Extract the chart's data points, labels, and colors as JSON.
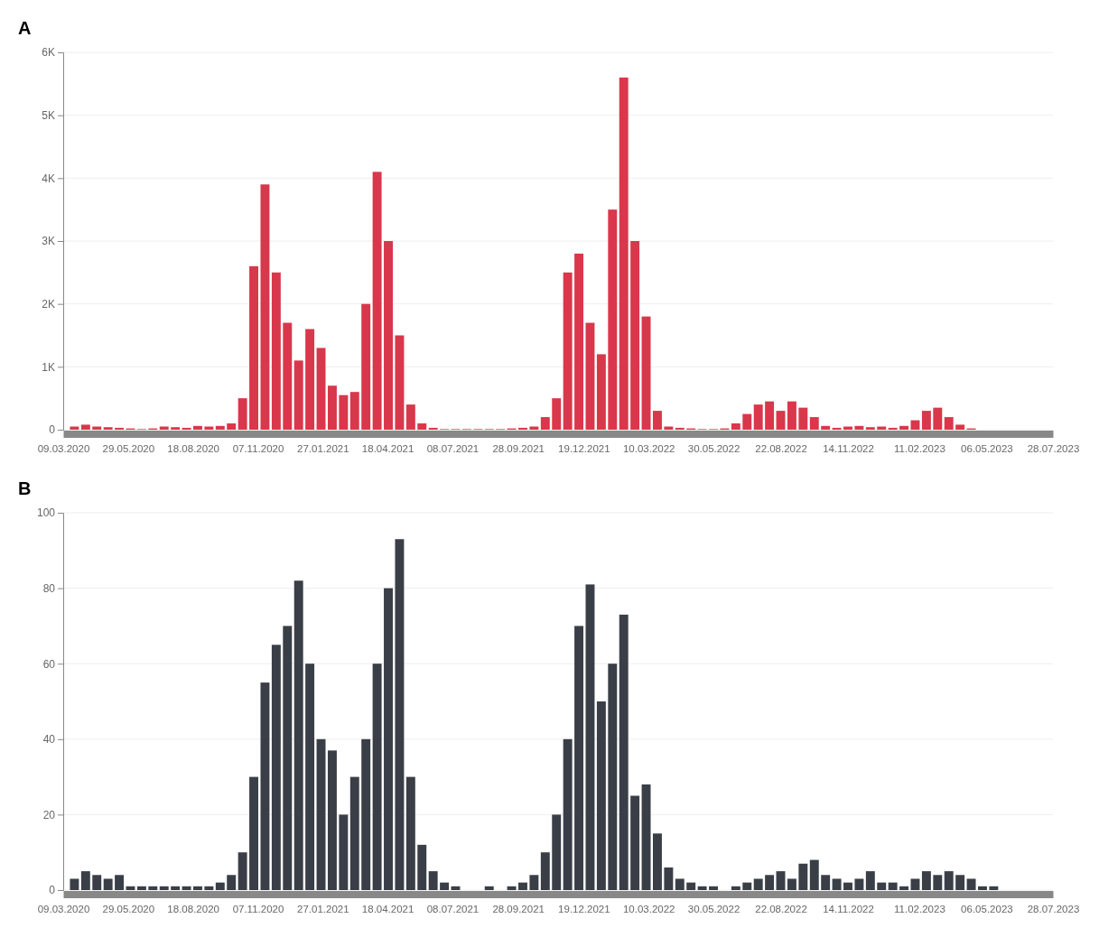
{
  "chart_data": [
    {
      "type": "bar",
      "title": "A",
      "grid": "y",
      "color": "#d9374b",
      "x": [
        "2020-03-09",
        "2020-03-23",
        "2020-04-06",
        "2020-04-20",
        "2020-05-04",
        "2020-05-18",
        "2020-06-01",
        "2020-06-15",
        "2020-06-29",
        "2020-07-13",
        "2020-07-27",
        "2020-08-10",
        "2020-08-24",
        "2020-09-07",
        "2020-09-21",
        "2020-10-05",
        "2020-10-19",
        "2020-11-02",
        "2020-11-16",
        "2020-11-30",
        "2020-12-14",
        "2020-12-28",
        "2021-01-11",
        "2021-01-25",
        "2021-02-08",
        "2021-02-22",
        "2021-03-08",
        "2021-03-22",
        "2021-04-05",
        "2021-04-19",
        "2021-05-03",
        "2021-05-17",
        "2021-05-31",
        "2021-06-14",
        "2021-06-28",
        "2021-07-12",
        "2021-07-26",
        "2021-08-09",
        "2021-08-23",
        "2021-09-06",
        "2021-09-20",
        "2021-10-04",
        "2021-10-18",
        "2021-11-01",
        "2021-11-15",
        "2021-11-29",
        "2021-12-13",
        "2021-12-27",
        "2022-01-10",
        "2022-01-24",
        "2022-02-07",
        "2022-02-21",
        "2022-03-07",
        "2022-03-21",
        "2022-04-04",
        "2022-04-18",
        "2022-05-02",
        "2022-05-16",
        "2022-05-30",
        "2022-06-13",
        "2022-06-27",
        "2022-07-11",
        "2022-07-25",
        "2022-08-08",
        "2022-08-22",
        "2022-09-05",
        "2022-09-19",
        "2022-10-03",
        "2022-10-17",
        "2022-10-31",
        "2022-11-14",
        "2022-11-28",
        "2022-12-12",
        "2022-12-26",
        "2023-01-09",
        "2023-01-23",
        "2023-02-06",
        "2023-02-20",
        "2023-03-06",
        "2023-03-20",
        "2023-04-03",
        "2023-04-17",
        "2023-05-01",
        "2023-05-15",
        "2023-05-29",
        "2023-06-12",
        "2023-06-26",
        "2023-07-10",
        "2023-07-24"
      ],
      "values": [
        0,
        50,
        80,
        50,
        40,
        30,
        20,
        10,
        20,
        50,
        40,
        30,
        60,
        50,
        60,
        100,
        500,
        2600,
        3900,
        2500,
        1700,
        1100,
        1600,
        1300,
        700,
        550,
        600,
        2000,
        4100,
        3000,
        1500,
        400,
        100,
        30,
        10,
        10,
        10,
        10,
        10,
        10,
        20,
        30,
        50,
        200,
        500,
        2500,
        2800,
        1700,
        1200,
        3500,
        5600,
        3000,
        1800,
        300,
        50,
        30,
        20,
        10,
        10,
        20,
        100,
        250,
        400,
        450,
        300,
        450,
        350,
        200,
        60,
        30,
        50,
        60,
        40,
        50,
        30,
        60,
        150,
        300,
        350,
        200,
        80,
        20,
        0,
        0,
        0,
        0,
        0,
        0,
        0
      ],
      "xlim": [
        "2020-03-09",
        "2023-07-28"
      ],
      "xticks": [
        {
          "value": "2020-03-09",
          "label": "09.03.2020"
        },
        {
          "value": "2020-05-29",
          "label": "29.05.2020"
        },
        {
          "value": "2020-08-18",
          "label": "18.08.2020"
        },
        {
          "value": "2020-11-07",
          "label": "07.11.2020"
        },
        {
          "value": "2021-01-27",
          "label": "27.01.2021"
        },
        {
          "value": "2021-04-18",
          "label": "18.04.2021"
        },
        {
          "value": "2021-07-08",
          "label": "08.07.2021"
        },
        {
          "value": "2021-09-28",
          "label": "28.09.2021"
        },
        {
          "value": "2021-12-19",
          "label": "19.12.2021"
        },
        {
          "value": "2022-03-10",
          "label": "10.03.2022"
        },
        {
          "value": "2022-05-30",
          "label": "30.05.2022"
        },
        {
          "value": "2022-08-22",
          "label": "22.08.2022"
        },
        {
          "value": "2022-11-14",
          "label": "14.11.2022"
        },
        {
          "value": "2023-02-11",
          "label": "11.02.2023"
        },
        {
          "value": "2023-05-06",
          "label": "06.05.2023"
        },
        {
          "value": "2023-07-28",
          "label": "28.07.2023"
        }
      ],
      "ylim": [
        0,
        6000
      ],
      "yticks": [
        0,
        {
          "value": 1000,
          "label": "1K"
        },
        {
          "value": 2000,
          "label": "2K"
        },
        {
          "value": 3000,
          "label": "3K"
        },
        {
          "value": 4000,
          "label": "4K"
        },
        {
          "value": 5000,
          "label": "5K"
        },
        {
          "value": 6000,
          "label": "6K"
        }
      ]
    },
    {
      "type": "bar",
      "title": "B",
      "grid": "y",
      "color": "#3a3f47",
      "x": [
        "2020-03-09",
        "2020-03-23",
        "2020-04-06",
        "2020-04-20",
        "2020-05-04",
        "2020-05-18",
        "2020-06-01",
        "2020-06-15",
        "2020-06-29",
        "2020-07-13",
        "2020-07-27",
        "2020-08-10",
        "2020-08-24",
        "2020-09-07",
        "2020-09-21",
        "2020-10-05",
        "2020-10-19",
        "2020-11-02",
        "2020-11-16",
        "2020-11-30",
        "2020-12-14",
        "2020-12-28",
        "2021-01-11",
        "2021-01-25",
        "2021-02-08",
        "2021-02-22",
        "2021-03-08",
        "2021-03-22",
        "2021-04-05",
        "2021-04-19",
        "2021-05-03",
        "2021-05-17",
        "2021-05-31",
        "2021-06-14",
        "2021-06-28",
        "2021-07-12",
        "2021-07-26",
        "2021-08-09",
        "2021-08-23",
        "2021-09-06",
        "2021-09-20",
        "2021-10-04",
        "2021-10-18",
        "2021-11-01",
        "2021-11-15",
        "2021-11-29",
        "2021-12-13",
        "2021-12-27",
        "2022-01-10",
        "2022-01-24",
        "2022-02-07",
        "2022-02-21",
        "2022-03-07",
        "2022-03-21",
        "2022-04-04",
        "2022-04-18",
        "2022-05-02",
        "2022-05-16",
        "2022-05-30",
        "2022-06-13",
        "2022-06-27",
        "2022-07-11",
        "2022-07-25",
        "2022-08-08",
        "2022-08-22",
        "2022-09-05",
        "2022-09-19",
        "2022-10-03",
        "2022-10-17",
        "2022-10-31",
        "2022-11-14",
        "2022-11-28",
        "2022-12-12",
        "2022-12-26",
        "2023-01-09",
        "2023-01-23",
        "2023-02-06",
        "2023-02-20",
        "2023-03-06",
        "2023-03-20",
        "2023-04-03",
        "2023-04-17",
        "2023-05-01",
        "2023-05-15",
        "2023-05-29",
        "2023-06-12",
        "2023-06-26",
        "2023-07-10",
        "2023-07-24"
      ],
      "values": [
        0,
        3,
        5,
        4,
        3,
        4,
        1,
        1,
        1,
        1,
        1,
        1,
        1,
        1,
        2,
        4,
        10,
        30,
        55,
        65,
        70,
        82,
        60,
        40,
        37,
        20,
        30,
        40,
        60,
        80,
        93,
        30,
        12,
        5,
        2,
        1,
        0,
        0,
        1,
        0,
        1,
        2,
        4,
        10,
        20,
        40,
        70,
        81,
        50,
        60,
        73,
        25,
        28,
        15,
        6,
        3,
        2,
        1,
        1,
        0,
        1,
        2,
        3,
        4,
        5,
        3,
        7,
        8,
        4,
        3,
        2,
        3,
        5,
        2,
        2,
        1,
        3,
        5,
        4,
        5,
        4,
        3,
        1,
        1,
        0,
        0,
        0,
        0,
        0
      ],
      "xlim": [
        "2020-03-09",
        "2023-07-28"
      ],
      "xticks": [
        {
          "value": "2020-03-09",
          "label": "09.03.2020"
        },
        {
          "value": "2020-05-29",
          "label": "29.05.2020"
        },
        {
          "value": "2020-08-18",
          "label": "18.08.2020"
        },
        {
          "value": "2020-11-07",
          "label": "07.11.2020"
        },
        {
          "value": "2021-01-27",
          "label": "27.01.2021"
        },
        {
          "value": "2021-04-18",
          "label": "18.04.2021"
        },
        {
          "value": "2021-07-08",
          "label": "08.07.2021"
        },
        {
          "value": "2021-09-28",
          "label": "28.09.2021"
        },
        {
          "value": "2021-12-19",
          "label": "19.12.2021"
        },
        {
          "value": "2022-03-10",
          "label": "10.03.2022"
        },
        {
          "value": "2022-05-30",
          "label": "30.05.2022"
        },
        {
          "value": "2022-08-22",
          "label": "22.08.2022"
        },
        {
          "value": "2022-11-14",
          "label": "14.11.2022"
        },
        {
          "value": "2023-02-11",
          "label": "11.02.2023"
        },
        {
          "value": "2023-05-06",
          "label": "06.05.2023"
        },
        {
          "value": "2023-07-28",
          "label": "28.07.2023"
        }
      ],
      "ylim": [
        0,
        100
      ],
      "yticks": [
        0,
        20,
        40,
        60,
        80,
        100
      ]
    }
  ]
}
